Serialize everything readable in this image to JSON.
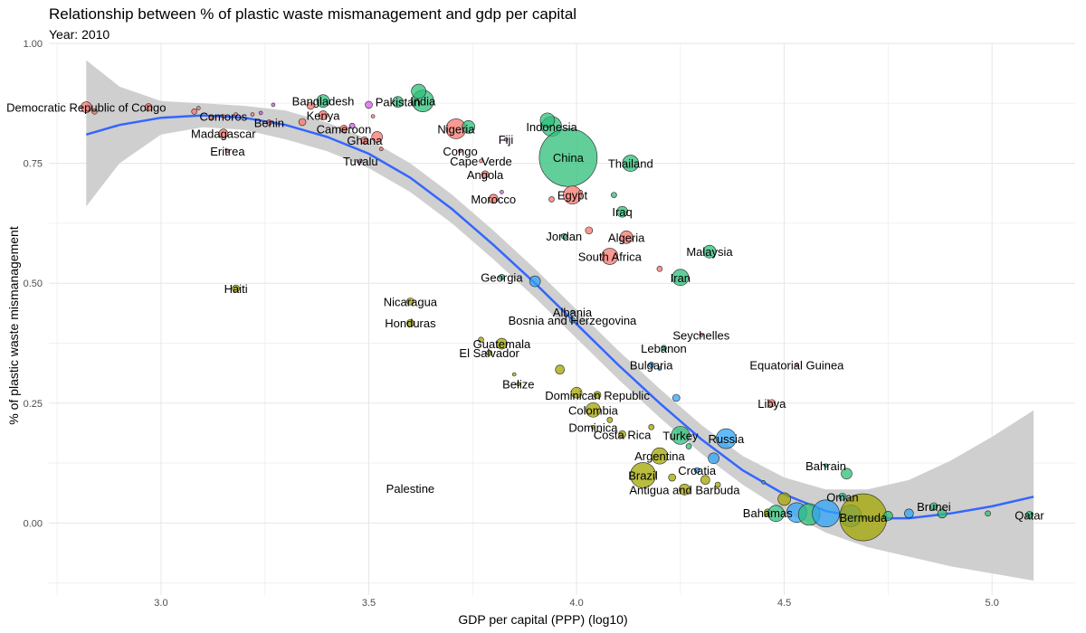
{
  "chart_data": {
    "type": "scatter",
    "title": "Relationship between % of plastic waste mismanagement and gdp per capital",
    "subtitle": "Year: 2010",
    "xlabel": "GDP per capital (PPP) (log10)",
    "ylabel": "% of plastic waste mismanagement",
    "xlim": [
      2.73,
      5.2
    ],
    "ylim": [
      -0.15,
      1.0
    ],
    "x_ticks": [
      "3.0",
      "3.5",
      "4.0",
      "4.5",
      "5.0"
    ],
    "y_ticks": [
      "0.00",
      "0.25",
      "0.50",
      "0.75",
      "1.00"
    ],
    "grid": true,
    "legend": "none",
    "colors": {
      "africa": "#f8766d",
      "asia": "#2dbf7a",
      "americas": "#a3a500",
      "europe": "#2fa3f5",
      "oceania": "#d55ee8",
      "smooth_line": "#3366ff",
      "smooth_band": "#cccccc"
    },
    "trend_line": {
      "x": [
        2.82,
        2.9,
        3.0,
        3.1,
        3.2,
        3.3,
        3.4,
        3.5,
        3.6,
        3.7,
        3.8,
        3.9,
        4.0,
        4.1,
        4.2,
        4.3,
        4.4,
        4.5,
        4.6,
        4.7,
        4.8,
        4.9,
        5.0,
        5.1
      ],
      "y": [
        0.81,
        0.83,
        0.845,
        0.85,
        0.845,
        0.83,
        0.805,
        0.77,
        0.72,
        0.655,
        0.58,
        0.5,
        0.415,
        0.33,
        0.25,
        0.175,
        0.11,
        0.06,
        0.025,
        0.01,
        0.01,
        0.02,
        0.035,
        0.055
      ],
      "lower": [
        0.66,
        0.75,
        0.81,
        0.825,
        0.82,
        0.8,
        0.775,
        0.74,
        0.69,
        0.625,
        0.55,
        0.47,
        0.385,
        0.3,
        0.22,
        0.145,
        0.08,
        0.025,
        -0.02,
        -0.05,
        -0.07,
        -0.09,
        -0.105,
        -0.12
      ],
      "upper": [
        0.965,
        0.91,
        0.88,
        0.875,
        0.87,
        0.86,
        0.835,
        0.8,
        0.75,
        0.685,
        0.61,
        0.53,
        0.445,
        0.36,
        0.28,
        0.205,
        0.14,
        0.095,
        0.07,
        0.07,
        0.09,
        0.13,
        0.18,
        0.235
      ]
    },
    "points": [
      {
        "label": "Democratic Republic of Congo",
        "x": 2.82,
        "y": 0.867,
        "size": 6,
        "region": "africa"
      },
      {
        "label": "",
        "x": 2.84,
        "y": 0.858,
        "size": 3,
        "region": "africa"
      },
      {
        "label": "",
        "x": 2.97,
        "y": 0.867,
        "size": 4,
        "region": "africa"
      },
      {
        "label": "",
        "x": 3.08,
        "y": 0.858,
        "size": 3,
        "region": "africa"
      },
      {
        "label": "",
        "x": 3.09,
        "y": 0.865,
        "size": 2,
        "region": "africa"
      },
      {
        "label": "",
        "x": 3.12,
        "y": 0.845,
        "size": 2,
        "region": "africa"
      },
      {
        "label": "Comoros",
        "x": 3.15,
        "y": 0.848,
        "size": 2,
        "region": "africa"
      },
      {
        "label": "Madagascar",
        "x": 3.15,
        "y": 0.812,
        "size": 5,
        "region": "africa"
      },
      {
        "label": "Eritrea",
        "x": 3.16,
        "y": 0.776,
        "size": 2,
        "region": "africa"
      },
      {
        "label": "",
        "x": 3.18,
        "y": 0.852,
        "size": 2,
        "region": "africa"
      },
      {
        "label": "Benin",
        "x": 3.26,
        "y": 0.835,
        "size": 3,
        "region": "africa"
      },
      {
        "label": "",
        "x": 3.22,
        "y": 0.852,
        "size": 2,
        "region": "africa"
      },
      {
        "label": "",
        "x": 3.24,
        "y": 0.855,
        "size": 2,
        "region": "oceania"
      },
      {
        "label": "",
        "x": 3.27,
        "y": 0.872,
        "size": 2,
        "region": "oceania"
      },
      {
        "label": "Kenya",
        "x": 3.39,
        "y": 0.85,
        "size": 5,
        "region": "africa"
      },
      {
        "label": "",
        "x": 3.34,
        "y": 0.836,
        "size": 4,
        "region": "africa"
      },
      {
        "label": "Bangladesh",
        "x": 3.39,
        "y": 0.88,
        "size": 7,
        "region": "asia"
      },
      {
        "label": "",
        "x": 3.36,
        "y": 0.87,
        "size": 4,
        "region": "africa"
      },
      {
        "label": "Cameroon",
        "x": 3.44,
        "y": 0.822,
        "size": 4,
        "region": "africa"
      },
      {
        "label": "",
        "x": 3.46,
        "y": 0.828,
        "size": 3,
        "region": "oceania"
      },
      {
        "label": "Ghana",
        "x": 3.49,
        "y": 0.798,
        "size": 4,
        "region": "africa"
      },
      {
        "label": "",
        "x": 3.52,
        "y": 0.805,
        "size": 6,
        "region": "africa"
      },
      {
        "label": "",
        "x": 3.51,
        "y": 0.848,
        "size": 2,
        "region": "africa"
      },
      {
        "label": "",
        "x": 3.5,
        "y": 0.872,
        "size": 4,
        "region": "oceania"
      },
      {
        "label": "",
        "x": 3.53,
        "y": 0.78,
        "size": 2,
        "region": "africa"
      },
      {
        "label": "Tuvalu",
        "x": 3.48,
        "y": 0.755,
        "size": 2,
        "region": "oceania"
      },
      {
        "label": "Pakistan",
        "x": 3.57,
        "y": 0.878,
        "size": 6,
        "region": "asia"
      },
      {
        "label": "India",
        "x": 3.63,
        "y": 0.88,
        "size": 12,
        "region": "asia"
      },
      {
        "label": "",
        "x": 3.62,
        "y": 0.9,
        "size": 8,
        "region": "asia"
      },
      {
        "label": "Nigeria",
        "x": 3.71,
        "y": 0.822,
        "size": 11,
        "region": "africa"
      },
      {
        "label": "",
        "x": 3.74,
        "y": 0.826,
        "size": 7,
        "region": "asia"
      },
      {
        "label": "Congo",
        "x": 3.72,
        "y": 0.776,
        "size": 2,
        "region": "africa"
      },
      {
        "label": "Cape Verde",
        "x": 3.77,
        "y": 0.755,
        "size": 2,
        "region": "africa"
      },
      {
        "label": "Angola",
        "x": 3.78,
        "y": 0.727,
        "size": 4,
        "region": "africa"
      },
      {
        "label": "Fiji",
        "x": 3.83,
        "y": 0.8,
        "size": 2,
        "region": "oceania"
      },
      {
        "label": "Indonesia",
        "x": 3.94,
        "y": 0.827,
        "size": 11,
        "region": "asia"
      },
      {
        "label": "",
        "x": 3.93,
        "y": 0.84,
        "size": 8,
        "region": "asia"
      },
      {
        "label": "China",
        "x": 3.98,
        "y": 0.762,
        "size": 32,
        "region": "asia"
      },
      {
        "label": "Morocco",
        "x": 3.8,
        "y": 0.676,
        "size": 5,
        "region": "africa"
      },
      {
        "label": "",
        "x": 3.82,
        "y": 0.69,
        "size": 2,
        "region": "oceania"
      },
      {
        "label": "",
        "x": 3.94,
        "y": 0.675,
        "size": 3,
        "region": "africa"
      },
      {
        "label": "Egypt",
        "x": 3.99,
        "y": 0.684,
        "size": 10,
        "region": "africa"
      },
      {
        "label": "",
        "x": 4.01,
        "y": 0.69,
        "size": 2,
        "region": "africa"
      },
      {
        "label": "Thailand",
        "x": 4.13,
        "y": 0.75,
        "size": 9,
        "region": "asia"
      },
      {
        "label": "",
        "x": 4.09,
        "y": 0.684,
        "size": 3,
        "region": "asia"
      },
      {
        "label": "Iraq",
        "x": 4.11,
        "y": 0.649,
        "size": 6,
        "region": "asia"
      },
      {
        "label": "Jordan",
        "x": 3.97,
        "y": 0.598,
        "size": 3,
        "region": "asia"
      },
      {
        "label": "",
        "x": 4.03,
        "y": 0.61,
        "size": 4,
        "region": "africa"
      },
      {
        "label": "Algeria",
        "x": 4.12,
        "y": 0.596,
        "size": 7,
        "region": "africa"
      },
      {
        "label": "South Africa",
        "x": 4.08,
        "y": 0.556,
        "size": 9,
        "region": "africa"
      },
      {
        "label": "",
        "x": 4.2,
        "y": 0.53,
        "size": 3,
        "region": "africa"
      },
      {
        "label": "Malaysia",
        "x": 4.32,
        "y": 0.566,
        "size": 7,
        "region": "asia"
      },
      {
        "label": "Iran",
        "x": 4.25,
        "y": 0.512,
        "size": 9,
        "region": "asia"
      },
      {
        "label": "Georgia",
        "x": 3.82,
        "y": 0.513,
        "size": 3,
        "region": "asia"
      },
      {
        "label": "",
        "x": 3.9,
        "y": 0.504,
        "size": 6,
        "region": "europe"
      },
      {
        "label": "Albania",
        "x": 3.99,
        "y": 0.44,
        "size": 2,
        "region": "europe"
      },
      {
        "label": "Bosnia and Herzegovina",
        "x": 3.99,
        "y": 0.423,
        "size": 3,
        "region": "europe"
      },
      {
        "label": "Haiti",
        "x": 3.18,
        "y": 0.489,
        "size": 4,
        "region": "americas"
      },
      {
        "label": "Nicaragua",
        "x": 3.6,
        "y": 0.462,
        "size": 4,
        "region": "americas"
      },
      {
        "label": "Honduras",
        "x": 3.6,
        "y": 0.417,
        "size": 4,
        "region": "americas"
      },
      {
        "label": "Guatemala",
        "x": 3.82,
        "y": 0.374,
        "size": 6,
        "region": "americas"
      },
      {
        "label": "",
        "x": 3.77,
        "y": 0.382,
        "size": 3,
        "region": "americas"
      },
      {
        "label": "El Salvador",
        "x": 3.79,
        "y": 0.355,
        "size": 3,
        "region": "americas"
      },
      {
        "label": "Seychelles",
        "x": 4.3,
        "y": 0.392,
        "size": 2,
        "region": "africa"
      },
      {
        "label": "Lebanon",
        "x": 4.21,
        "y": 0.365,
        "size": 3,
        "region": "asia"
      },
      {
        "label": "Bulgaria",
        "x": 4.18,
        "y": 0.33,
        "size": 3,
        "region": "europe"
      },
      {
        "label": "",
        "x": 4.2,
        "y": 0.322,
        "size": 2,
        "region": "europe"
      },
      {
        "label": "Equatorial Guinea",
        "x": 4.53,
        "y": 0.33,
        "size": 2,
        "region": "africa"
      },
      {
        "label": "Belize",
        "x": 3.86,
        "y": 0.29,
        "size": 2,
        "region": "americas"
      },
      {
        "label": "",
        "x": 3.96,
        "y": 0.32,
        "size": 5,
        "region": "americas"
      },
      {
        "label": "",
        "x": 3.85,
        "y": 0.31,
        "size": 2,
        "region": "americas"
      },
      {
        "label": "Dominican Republic",
        "x": 4.05,
        "y": 0.267,
        "size": 4,
        "region": "americas"
      },
      {
        "label": "",
        "x": 4.0,
        "y": 0.272,
        "size": 6,
        "region": "americas"
      },
      {
        "label": "",
        "x": 4.24,
        "y": 0.261,
        "size": 4,
        "region": "europe"
      },
      {
        "label": "Libya",
        "x": 4.47,
        "y": 0.25,
        "size": 4,
        "region": "africa"
      },
      {
        "label": "Colombia",
        "x": 4.04,
        "y": 0.236,
        "size": 8,
        "region": "americas"
      },
      {
        "label": "Dominica",
        "x": 4.04,
        "y": 0.2,
        "size": 2,
        "region": "americas"
      },
      {
        "label": "",
        "x": 4.08,
        "y": 0.215,
        "size": 3,
        "region": "americas"
      },
      {
        "label": "Costa Rica",
        "x": 4.11,
        "y": 0.185,
        "size": 4,
        "region": "americas"
      },
      {
        "label": "",
        "x": 4.18,
        "y": 0.2,
        "size": 3,
        "region": "americas"
      },
      {
        "label": "Turkey",
        "x": 4.25,
        "y": 0.183,
        "size": 10,
        "region": "asia"
      },
      {
        "label": "Russia",
        "x": 4.36,
        "y": 0.176,
        "size": 11,
        "region": "europe"
      },
      {
        "label": "",
        "x": 4.27,
        "y": 0.16,
        "size": 3,
        "region": "asia"
      },
      {
        "label": "Argentina",
        "x": 4.2,
        "y": 0.14,
        "size": 9,
        "region": "americas"
      },
      {
        "label": "",
        "x": 4.33,
        "y": 0.135,
        "size": 6,
        "region": "europe"
      },
      {
        "label": "Bahrain",
        "x": 4.6,
        "y": 0.12,
        "size": 2,
        "region": "asia"
      },
      {
        "label": "",
        "x": 4.65,
        "y": 0.103,
        "size": 6,
        "region": "asia"
      },
      {
        "label": "Croatia",
        "x": 4.29,
        "y": 0.11,
        "size": 3,
        "region": "europe"
      },
      {
        "label": "",
        "x": 4.31,
        "y": 0.09,
        "size": 5,
        "region": "americas"
      },
      {
        "label": "Brazil",
        "x": 4.16,
        "y": 0.1,
        "size": 14,
        "region": "americas"
      },
      {
        "label": "",
        "x": 4.23,
        "y": 0.095,
        "size": 4,
        "region": "americas"
      },
      {
        "label": "Antigua and Barbuda",
        "x": 4.26,
        "y": 0.07,
        "size": 6,
        "region": "americas"
      },
      {
        "label": "",
        "x": 4.34,
        "y": 0.08,
        "size": 3,
        "region": "americas"
      },
      {
        "label": "",
        "x": 4.45,
        "y": 0.085,
        "size": 2,
        "region": "europe"
      },
      {
        "label": "Palestine",
        "x": 3.6,
        "y": 0.072,
        "size": 0,
        "region": "asia"
      },
      {
        "label": "Oman",
        "x": 4.64,
        "y": 0.055,
        "size": 4,
        "region": "asia"
      },
      {
        "label": "",
        "x": 4.5,
        "y": 0.05,
        "size": 7,
        "region": "americas"
      },
      {
        "label": "Bahamas",
        "x": 4.46,
        "y": 0.022,
        "size": 4,
        "region": "americas"
      },
      {
        "label": "",
        "x": 4.48,
        "y": 0.02,
        "size": 9,
        "region": "asia"
      },
      {
        "label": "",
        "x": 4.53,
        "y": 0.022,
        "size": 11,
        "region": "europe"
      },
      {
        "label": "",
        "x": 4.56,
        "y": 0.018,
        "size": 12,
        "region": "asia"
      },
      {
        "label": "",
        "x": 4.6,
        "y": 0.02,
        "size": 15,
        "region": "europe"
      },
      {
        "label": "",
        "x": 4.66,
        "y": 0.015,
        "size": 12,
        "region": "europe"
      },
      {
        "label": "Bermuda",
        "x": 4.69,
        "y": 0.012,
        "size": 26,
        "region": "americas"
      },
      {
        "label": "",
        "x": 4.75,
        "y": 0.015,
        "size": 5,
        "region": "asia"
      },
      {
        "label": "",
        "x": 4.8,
        "y": 0.02,
        "size": 5,
        "region": "europe"
      },
      {
        "label": "Brunei",
        "x": 4.86,
        "y": 0.035,
        "size": 4,
        "region": "asia"
      },
      {
        "label": "",
        "x": 4.88,
        "y": 0.02,
        "size": 5,
        "region": "asia"
      },
      {
        "label": "",
        "x": 4.99,
        "y": 0.02,
        "size": 3,
        "region": "asia"
      },
      {
        "label": "Qatar",
        "x": 5.09,
        "y": 0.017,
        "size": 4,
        "region": "asia"
      }
    ]
  }
}
